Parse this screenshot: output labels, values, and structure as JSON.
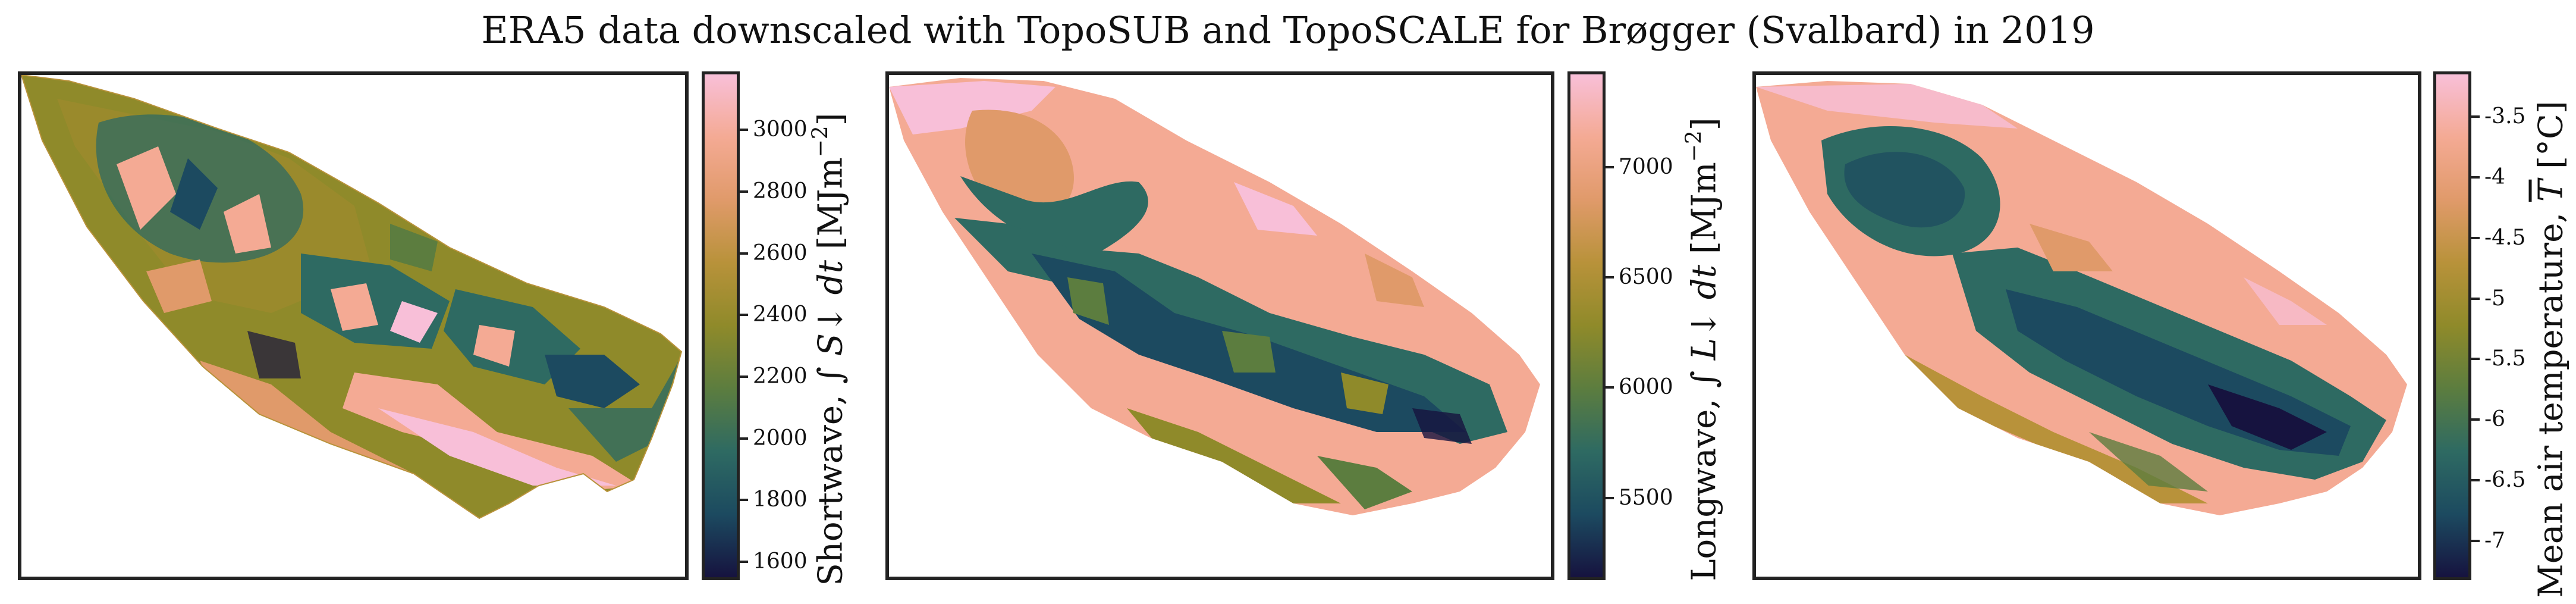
{
  "title": "ERA5 data downscaled with TopoSUB and TopoSCALE for Brøgger (Svalbard) in 2019",
  "colors": {
    "cmap": [
      "#16133f",
      "#1c4a60",
      "#2e6a62",
      "#5c7d3f",
      "#8f8a2a",
      "#b8923a",
      "#e09a6a",
      "#f4aa94",
      "#f8bfd8"
    ],
    "frame": "#222222"
  },
  "chart_data": [
    {
      "type": "heatmap",
      "name": "shortwave",
      "cbar_label": "Shortwave, ∫ S↓ dt [MJm⁻²]",
      "cbar_text": {
        "quantity": "Shortwave, ",
        "symbol": "∫ S↓ dt",
        "unit_base": " [MJm",
        "unit_exp": "−2",
        "unit_close": "]"
      },
      "vmin": 1550,
      "vmax": 3180,
      "ticks": [
        1600,
        1800,
        2000,
        2200,
        2400,
        2600,
        2800,
        3000
      ],
      "tick_labels": [
        "1600",
        "1800",
        "2000",
        "2200",
        "2400",
        "2600",
        "2800",
        "3000"
      ]
    },
    {
      "type": "heatmap",
      "name": "longwave",
      "cbar_label": "Longwave, ∫ L↓ dt [MJm⁻²]",
      "cbar_text": {
        "quantity": "Longwave, ",
        "symbol": "∫ L↓ dt",
        "unit_base": " [MJm",
        "unit_exp": "−2",
        "unit_close": "]"
      },
      "vmin": 5140,
      "vmax": 7420,
      "ticks": [
        5500,
        6000,
        6500,
        7000
      ],
      "tick_labels": [
        "5500",
        "6000",
        "6500",
        "7000"
      ]
    },
    {
      "type": "heatmap",
      "name": "air-temperature",
      "cbar_label": "Mean air temperature, T̄ [°C]",
      "cbar_text": {
        "quantity": "Mean air temperature, ",
        "symbol": "T",
        "unit_base": " [°C]",
        "unit_exp": "",
        "unit_close": ""
      },
      "vmin": -7.3,
      "vmax": -3.15,
      "ticks": [
        -7,
        -6.5,
        -6,
        -5.5,
        -5,
        -4.5,
        -4,
        -3.5
      ],
      "tick_labels": [
        "-7",
        "-6.5",
        "-6",
        "-5.5",
        "-5",
        "-4.5",
        "-4",
        "-3.5"
      ]
    }
  ]
}
